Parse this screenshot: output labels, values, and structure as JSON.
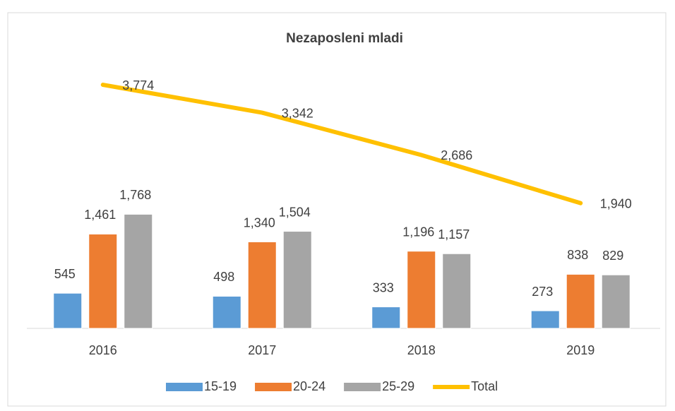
{
  "chart_data": {
    "type": "bar",
    "title": "Nezaposleni mladi",
    "categories": [
      "2016",
      "2017",
      "2018",
      "2019"
    ],
    "series": [
      {
        "name": "15-19",
        "color": "#5b9bd5",
        "values": [
          545,
          498,
          333,
          273
        ],
        "value_labels": [
          "545",
          "498",
          "333",
          "273"
        ]
      },
      {
        "name": "20-24",
        "color": "#ed7d31",
        "values": [
          1461,
          1340,
          1196,
          838
        ],
        "value_labels": [
          "1,461",
          "1,340",
          "1,196",
          "838"
        ]
      },
      {
        "name": "25-29",
        "color": "#a5a5a5",
        "values": [
          1768,
          1504,
          1157,
          829
        ],
        "value_labels": [
          "1,768",
          "1,504",
          "1,157",
          "829"
        ]
      },
      {
        "name": "Total",
        "color": "#ffc000",
        "type": "line",
        "values": [
          3774,
          3342,
          2686,
          1940
        ],
        "value_labels": [
          "3,774",
          "3,342",
          "2,686",
          "1,940"
        ]
      }
    ],
    "legend": "bottom"
  }
}
